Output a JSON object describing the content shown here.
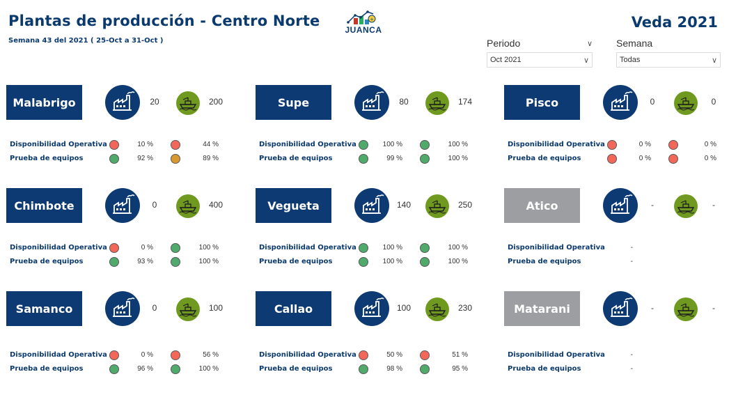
{
  "header": {
    "title": "Plantas de producción - Centro Norte",
    "subtitle": "Semana 43 del 2021 ( 25-Oct a 31-Oct )",
    "veda": "Veda 2021",
    "logo_text": "JUANCA"
  },
  "filters": {
    "periodo": {
      "label": "Periodo",
      "value": "Oct 2021"
    },
    "semana": {
      "label": "Semana",
      "value": "Todas"
    }
  },
  "row_labels": {
    "disp": "Disponibilidad Operativa",
    "prueba": "Prueba de equipos"
  },
  "colors": {
    "navy": "#0d3a73",
    "gray": "#9c9ea1",
    "olive": "#6f9a1f",
    "red": "#f2675a",
    "green": "#4faa6b",
    "amber": "#d89a2e"
  },
  "plants": [
    {
      "name": "Malabrigo",
      "active": true,
      "plant_value": "20",
      "ship_value": "200",
      "disp": {
        "p1": "10 %",
        "s1": "red",
        "p2": "44 %",
        "s2": "red"
      },
      "prueba": {
        "p1": "92 %",
        "s1": "green",
        "p2": "89 %",
        "s2": "amber"
      }
    },
    {
      "name": "Supe",
      "active": true,
      "plant_value": "80",
      "ship_value": "174",
      "disp": {
        "p1": "100 %",
        "s1": "green",
        "p2": "100 %",
        "s2": "green"
      },
      "prueba": {
        "p1": "99 %",
        "s1": "green",
        "p2": "100 %",
        "s2": "green"
      }
    },
    {
      "name": "Pisco",
      "active": true,
      "plant_value": "0",
      "ship_value": "0",
      "disp": {
        "p1": "0 %",
        "s1": "red",
        "p2": "0 %",
        "s2": "red"
      },
      "prueba": {
        "p1": "0 %",
        "s1": "red",
        "p2": "0 %",
        "s2": "red"
      }
    },
    {
      "name": "Chimbote",
      "active": true,
      "plant_value": "0",
      "ship_value": "400",
      "disp": {
        "p1": "0 %",
        "s1": "red",
        "p2": "100 %",
        "s2": "green"
      },
      "prueba": {
        "p1": "93 %",
        "s1": "green",
        "p2": "100 %",
        "s2": "green"
      }
    },
    {
      "name": "Vegueta",
      "active": true,
      "plant_value": "140",
      "ship_value": "250",
      "disp": {
        "p1": "100 %",
        "s1": "green",
        "p2": "100 %",
        "s2": "green"
      },
      "prueba": {
        "p1": "100 %",
        "s1": "green",
        "p2": "100 %",
        "s2": "green"
      }
    },
    {
      "name": "Atico",
      "active": false,
      "plant_value": "-",
      "ship_value": "-",
      "disp": {
        "p1": "-",
        "s1": "",
        "p2": "-",
        "s2": ""
      },
      "prueba": {
        "p1": "-",
        "s1": "",
        "p2": "-",
        "s2": ""
      }
    },
    {
      "name": "Samanco",
      "active": true,
      "plant_value": "0",
      "ship_value": "100",
      "disp": {
        "p1": "0 %",
        "s1": "red",
        "p2": "56 %",
        "s2": "red"
      },
      "prueba": {
        "p1": "96 %",
        "s1": "green",
        "p2": "100 %",
        "s2": "green"
      }
    },
    {
      "name": "Callao",
      "active": true,
      "plant_value": "100",
      "ship_value": "230",
      "disp": {
        "p1": "50 %",
        "s1": "red",
        "p2": "51 %",
        "s2": "red"
      },
      "prueba": {
        "p1": "98 %",
        "s1": "green",
        "p2": "95 %",
        "s2": "green"
      }
    },
    {
      "name": "Matarani",
      "active": false,
      "plant_value": "-",
      "ship_value": "-",
      "disp": {
        "p1": "-",
        "s1": "",
        "p2": "-",
        "s2": ""
      },
      "prueba": {
        "p1": "-",
        "s1": "",
        "p2": "-",
        "s2": ""
      }
    }
  ]
}
